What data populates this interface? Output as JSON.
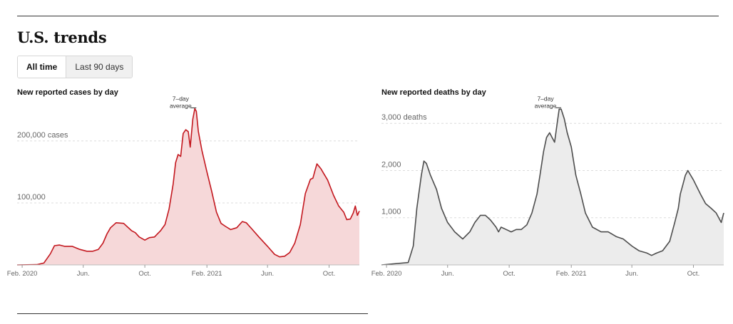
{
  "page": {
    "title": "U.S. trends"
  },
  "toggle": {
    "options": [
      "All time",
      "Last 90 days"
    ],
    "selected": "All time"
  },
  "chart_data": [
    {
      "type": "area",
      "title": "New reported cases by day",
      "ytick_labels": [
        "100,000",
        "200,000 cases"
      ],
      "yticks": [
        100000,
        200000
      ],
      "ylim": [
        0,
        255000
      ],
      "xtick_labels": [
        "Feb. 2020",
        "Jun.",
        "Oct.",
        "Feb. 2021",
        "Jun.",
        "Oct."
      ],
      "xticks": [
        "2020-02-01",
        "2020-06-01",
        "2020-10-01",
        "2021-02-01",
        "2021-06-01",
        "2021-10-01"
      ],
      "xlim": [
        "2020-01-22",
        "2021-11-30"
      ],
      "grid": true,
      "annotation": {
        "text_lines": [
          "7–day",
          "average"
        ],
        "x": "2021-01-11",
        "y": 251000
      },
      "line_color": "#c3171e",
      "fill_color": "#f6d8d9",
      "series": [
        {
          "x": [
            "2020-01-22",
            "2020-03-01",
            "2020-03-15",
            "2020-03-28",
            "2020-04-05",
            "2020-04-15",
            "2020-04-25",
            "2020-05-10",
            "2020-05-25",
            "2020-06-08",
            "2020-06-20",
            "2020-07-01",
            "2020-07-10",
            "2020-07-18",
            "2020-07-25",
            "2020-08-05",
            "2020-08-20",
            "2020-09-05",
            "2020-09-12",
            "2020-09-20",
            "2020-10-01",
            "2020-10-10",
            "2020-10-20",
            "2020-11-01",
            "2020-11-10",
            "2020-11-18",
            "2020-11-26",
            "2020-12-01",
            "2020-12-06",
            "2020-12-11",
            "2020-12-16",
            "2020-12-21",
            "2020-12-26",
            "2020-12-30",
            "2021-01-04",
            "2021-01-08",
            "2021-01-11",
            "2021-01-15",
            "2021-01-22",
            "2021-02-01",
            "2021-02-10",
            "2021-02-20",
            "2021-03-01",
            "2021-03-10",
            "2021-03-20",
            "2021-04-01",
            "2021-04-12",
            "2021-04-20",
            "2021-05-01",
            "2021-05-15",
            "2021-06-01",
            "2021-06-15",
            "2021-06-25",
            "2021-07-05",
            "2021-07-15",
            "2021-07-25",
            "2021-08-05",
            "2021-08-15",
            "2021-08-25",
            "2021-08-30",
            "2021-09-03",
            "2021-09-07",
            "2021-09-15",
            "2021-09-20",
            "2021-09-28",
            "2021-10-10",
            "2021-10-20",
            "2021-10-30",
            "2021-11-05",
            "2021-11-12",
            "2021-11-18",
            "2021-11-22",
            "2021-11-26",
            "2021-11-30"
          ],
          "values": [
            0,
            500,
            3000,
            18000,
            31000,
            32000,
            30000,
            30000,
            25000,
            22000,
            22000,
            25000,
            35000,
            50000,
            60000,
            68000,
            67000,
            55000,
            52000,
            45000,
            40000,
            44000,
            45000,
            55000,
            65000,
            90000,
            130000,
            165000,
            178000,
            175000,
            212000,
            218000,
            215000,
            190000,
            235000,
            252000,
            248000,
            215000,
            185000,
            150000,
            120000,
            85000,
            67000,
            62000,
            57000,
            60000,
            70000,
            68000,
            58000,
            45000,
            30000,
            17000,
            13000,
            14000,
            20000,
            35000,
            65000,
            115000,
            138000,
            140000,
            152000,
            163000,
            155000,
            148000,
            137000,
            112000,
            95000,
            85000,
            73000,
            74000,
            84000,
            95000,
            80000,
            87000
          ]
        }
      ]
    },
    {
      "type": "area",
      "title": "New reported deaths by day",
      "ytick_labels": [
        "1,000",
        "2,000",
        "3,000 deaths"
      ],
      "yticks": [
        1000,
        2000,
        3000
      ],
      "ylim": [
        0,
        3350
      ],
      "xtick_labels": [
        "Feb. 2020",
        "Jun.",
        "Oct.",
        "Feb. 2021",
        "Jun.",
        "Oct."
      ],
      "xticks": [
        "2020-02-01",
        "2020-06-01",
        "2020-10-01",
        "2021-02-01",
        "2021-06-01",
        "2021-10-01"
      ],
      "xlim": [
        "2020-01-22",
        "2021-11-30"
      ],
      "grid": true,
      "annotation": {
        "text_lines": [
          "7–day",
          "average"
        ],
        "x": "2021-01-12",
        "y": 3300
      },
      "line_color": "#4d4d4d",
      "fill_color": "#ececec",
      "series": [
        {
          "x": [
            "2020-01-22",
            "2020-03-15",
            "2020-03-25",
            "2020-04-01",
            "2020-04-10",
            "2020-04-15",
            "2020-04-20",
            "2020-04-28",
            "2020-05-10",
            "2020-05-20",
            "2020-06-01",
            "2020-06-15",
            "2020-07-01",
            "2020-07-15",
            "2020-07-25",
            "2020-08-05",
            "2020-08-15",
            "2020-08-25",
            "2020-09-05",
            "2020-09-10",
            "2020-09-15",
            "2020-09-25",
            "2020-10-05",
            "2020-10-15",
            "2020-10-25",
            "2020-11-05",
            "2020-11-15",
            "2020-11-25",
            "2020-12-01",
            "2020-12-08",
            "2020-12-14",
            "2020-12-20",
            "2020-12-25",
            "2020-12-30",
            "2021-01-04",
            "2021-01-08",
            "2021-01-12",
            "2021-01-18",
            "2021-01-24",
            "2021-02-01",
            "2021-02-10",
            "2021-02-20",
            "2021-03-01",
            "2021-03-15",
            "2021-04-01",
            "2021-04-15",
            "2021-05-01",
            "2021-05-15",
            "2021-06-01",
            "2021-06-15",
            "2021-07-01",
            "2021-07-10",
            "2021-07-20",
            "2021-08-01",
            "2021-08-15",
            "2021-08-25",
            "2021-09-01",
            "2021-09-05",
            "2021-09-10",
            "2021-09-15",
            "2021-09-20",
            "2021-10-01",
            "2021-10-15",
            "2021-10-25",
            "2021-11-05",
            "2021-11-15",
            "2021-11-25",
            "2021-11-30"
          ],
          "values": [
            0,
            50,
            400,
            1200,
            1900,
            2200,
            2150,
            1900,
            1600,
            1200,
            900,
            700,
            550,
            700,
            900,
            1050,
            1050,
            950,
            800,
            700,
            800,
            750,
            700,
            750,
            750,
            850,
            1100,
            1500,
            1900,
            2400,
            2700,
            2800,
            2700,
            2600,
            3000,
            3300,
            3300,
            3100,
            2800,
            2500,
            1900,
            1500,
            1100,
            800,
            700,
            700,
            600,
            550,
            400,
            300,
            250,
            200,
            250,
            300,
            500,
            900,
            1200,
            1500,
            1700,
            1900,
            2000,
            1800,
            1500,
            1300,
            1200,
            1100,
            900,
            1100
          ]
        }
      ]
    }
  ]
}
